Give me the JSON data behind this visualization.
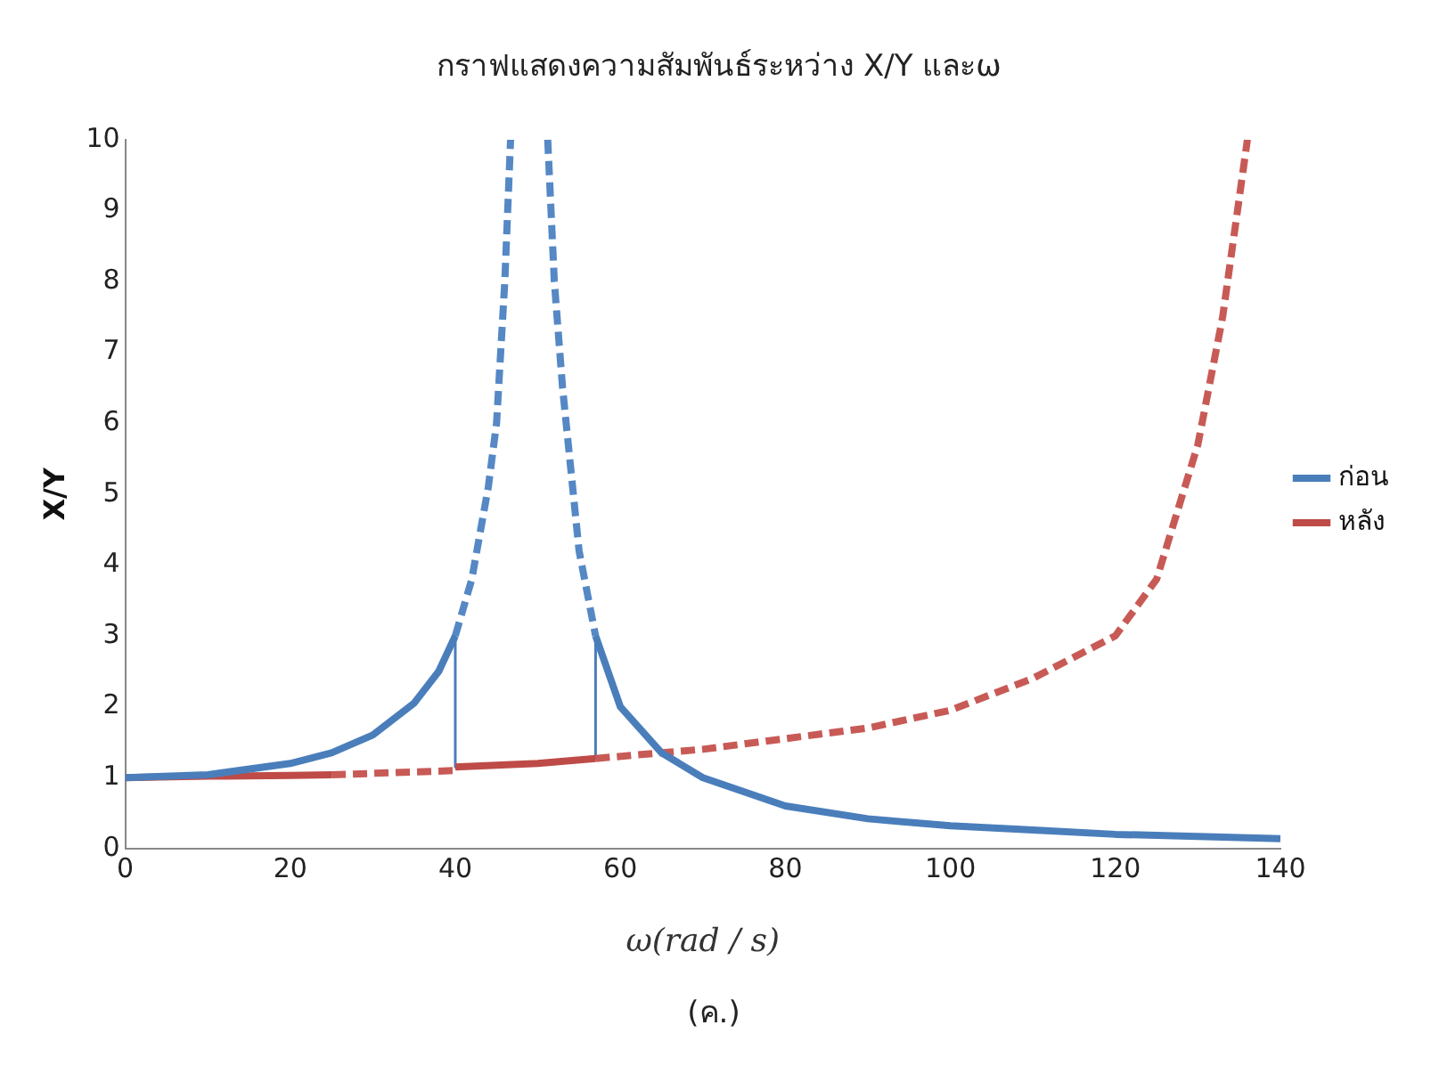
{
  "chart_data": {
    "type": "line",
    "title": "กราฟแสดงความสัมพันธ์ระหว่าง X/Y และω",
    "xlabel": "ω(rad / s)",
    "ylabel": "X/Y",
    "xlim": [
      0,
      140
    ],
    "xticks": [
      0,
      20,
      40,
      60,
      80,
      100,
      120,
      140
    ],
    "ylim": [
      0,
      10
    ],
    "yticks": [
      0,
      1,
      2,
      3,
      4,
      5,
      6,
      7,
      8,
      9,
      10
    ],
    "grid": false,
    "legend": "right",
    "marker": "none",
    "annotations": [
      "(ค.)"
    ],
    "series": [
      {
        "name": "ก่อน",
        "color": "#4a7ebb",
        "line_style": "solid",
        "x": [
          0,
          10,
          20,
          25,
          30,
          35,
          38,
          40,
          null,
          57,
          60,
          65,
          70,
          80,
          90,
          100,
          110,
          120,
          130,
          140
        ],
        "values": [
          1,
          1.04,
          1.2,
          1.35,
          1.6,
          2.05,
          2.5,
          3,
          null,
          3,
          2,
          1.35,
          1,
          0.6,
          0.42,
          0.32,
          0.26,
          0.2,
          0.17,
          0.14
        ]
      },
      {
        "name": "หลัง",
        "color": "#be4b48",
        "line_style": "solid",
        "x": [
          0,
          10,
          20,
          25,
          null,
          40,
          50,
          57
        ],
        "values": [
          1,
          1.02,
          1.03,
          1.04,
          null,
          1.15,
          1.2,
          1.27
        ]
      },
      {
        "color": "#5588c4",
        "line_style": "dashed",
        "x": [
          40,
          42,
          44,
          45,
          46,
          46.7,
          null,
          51.2,
          52,
          53,
          55,
          57
        ],
        "values": [
          3,
          3.8,
          5.1,
          6,
          8,
          10,
          null,
          10,
          8,
          6.5,
          4.2,
          3
        ]
      },
      {
        "color": "#c85a56",
        "line_style": "dashed",
        "x": [
          25,
          30,
          35,
          40,
          null,
          57,
          65,
          70,
          80,
          90,
          100,
          110,
          120,
          125,
          130,
          133,
          136
        ],
        "values": [
          1.04,
          1.06,
          1.08,
          1.1,
          null,
          1.27,
          1.35,
          1.4,
          1.55,
          1.7,
          1.95,
          2.4,
          3,
          3.8,
          5.7,
          7.5,
          10
        ]
      },
      {
        "color": "#4a7ebb",
        "line_style": "solid",
        "x": [
          40,
          40
        ],
        "values": [
          3,
          1.15
        ]
      },
      {
        "color": "#4a7ebb",
        "line_style": "solid",
        "x": [
          57,
          57
        ],
        "values": [
          3,
          1.27
        ]
      }
    ]
  }
}
